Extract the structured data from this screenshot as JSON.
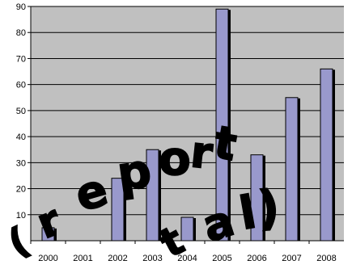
{
  "chart_data": {
    "type": "bar",
    "title": "",
    "xlabel": "",
    "ylabel": "",
    "categories": [
      "2000",
      "2001",
      "2002",
      "2003",
      "2004",
      "2005",
      "2006",
      "2007",
      "2008"
    ],
    "values": [
      5,
      0,
      24,
      35,
      9,
      89,
      33,
      55,
      66
    ],
    "ylim": [
      0,
      90
    ],
    "yticks": [
      10,
      20,
      30,
      40,
      50,
      60,
      70,
      80,
      90
    ],
    "grid": true,
    "legend": "none",
    "colors": {
      "bar_fill": "#9999cc",
      "bar_shadow": "#000000",
      "plot_background": "#c0c0c0",
      "gridline": "#000000"
    }
  },
  "watermark": {
    "text": "(report tal)",
    "fill": "#ffffff",
    "stroke": "#000000"
  }
}
